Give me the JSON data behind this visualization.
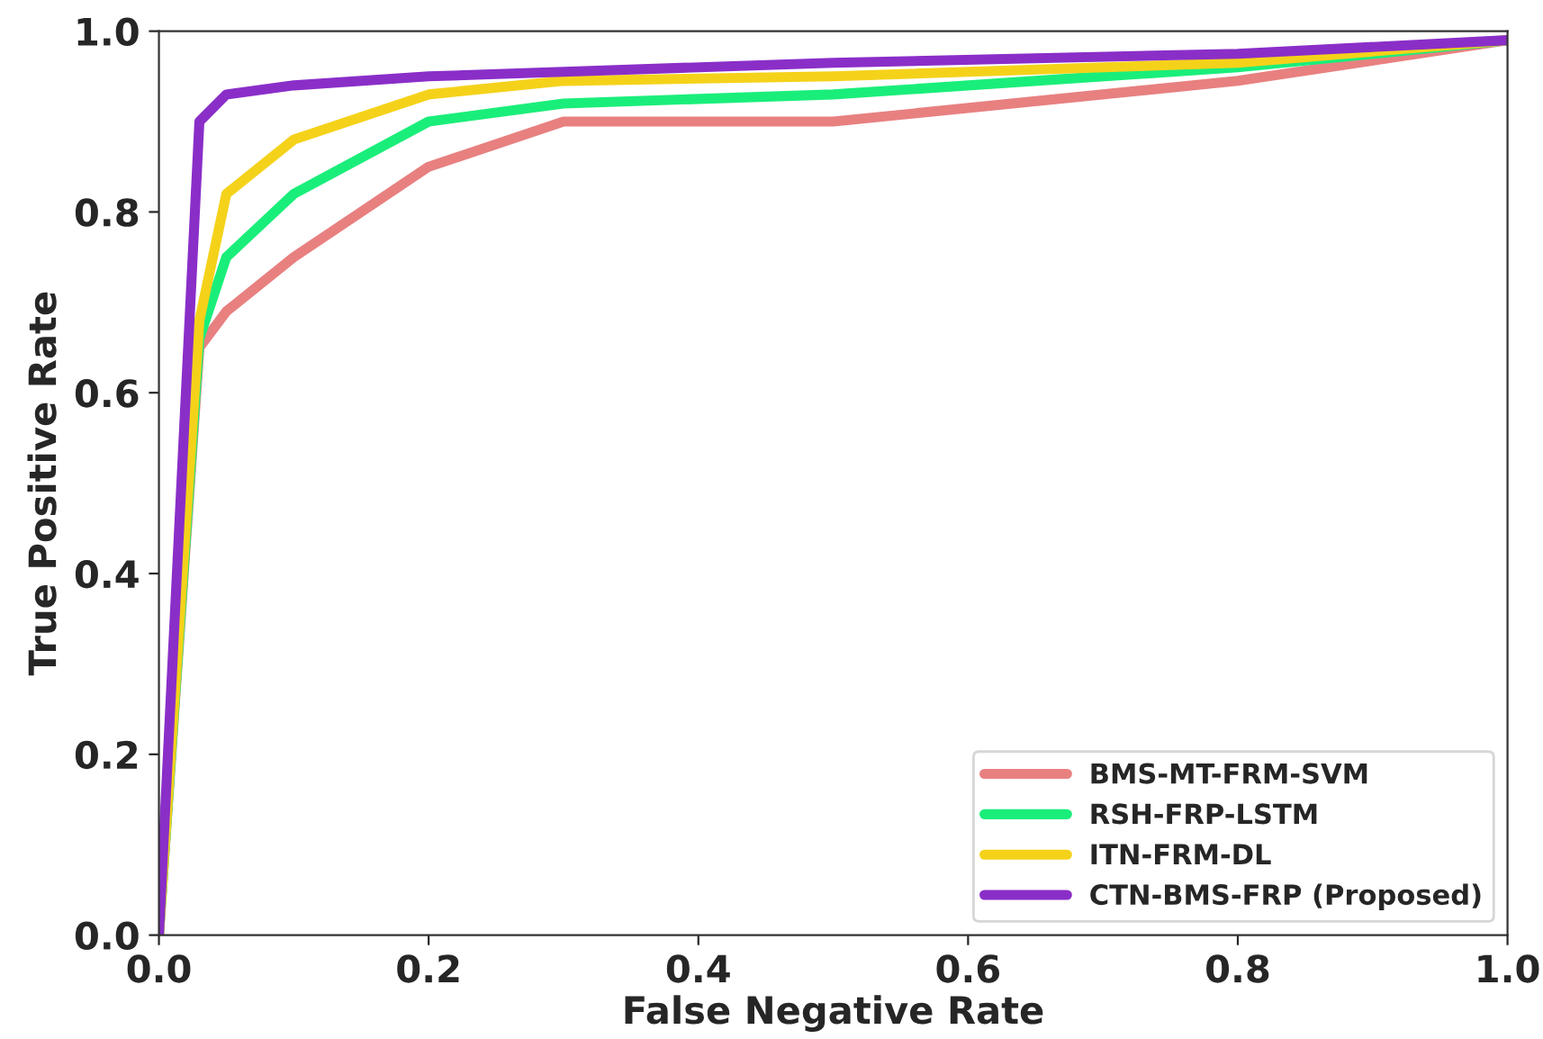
{
  "chart_data": {
    "type": "line",
    "xlabel": "False Negative Rate",
    "ylabel": "True Positive Rate",
    "x": [
      0,
      0.03,
      0.05,
      0.1,
      0.2,
      0.3,
      0.5,
      0.8,
      1.0
    ],
    "series": [
      {
        "name": "BMS-MT-FRM-SVM",
        "color": "#e88080",
        "values": [
          0,
          0.65,
          0.69,
          0.75,
          0.85,
          0.9,
          0.9,
          0.945,
          0.99
        ]
      },
      {
        "name": "RSH-FRP-LSTM",
        "color": "#1aee7a",
        "values": [
          0,
          0.66,
          0.75,
          0.82,
          0.9,
          0.92,
          0.93,
          0.96,
          0.99
        ]
      },
      {
        "name": "ITN-FRM-DL",
        "color": "#f5d21a",
        "values": [
          0,
          0.68,
          0.82,
          0.88,
          0.93,
          0.945,
          0.95,
          0.965,
          0.99
        ]
      },
      {
        "name": "CTN-BMS-FRP (Proposed)",
        "color": "#8a2ec8",
        "values": [
          0,
          0.9,
          0.93,
          0.94,
          0.95,
          0.955,
          0.965,
          0.975,
          0.99
        ]
      }
    ],
    "xlim": [
      0,
      1.0
    ],
    "ylim": [
      0,
      1.0
    ],
    "xticks": [
      {
        "value": 0,
        "label": "0.0"
      },
      0.2,
      0.4,
      0.6,
      0.8,
      {
        "value": 1.0,
        "label": "1.0"
      }
    ],
    "yticks": [
      {
        "value": 0,
        "label": "0.0"
      },
      0.2,
      0.4,
      0.6,
      0.8,
      {
        "value": 1.0,
        "label": "1.0"
      }
    ],
    "legend": "bottom right",
    "grid": false,
    "line_style": "solid",
    "marker": "none"
  }
}
